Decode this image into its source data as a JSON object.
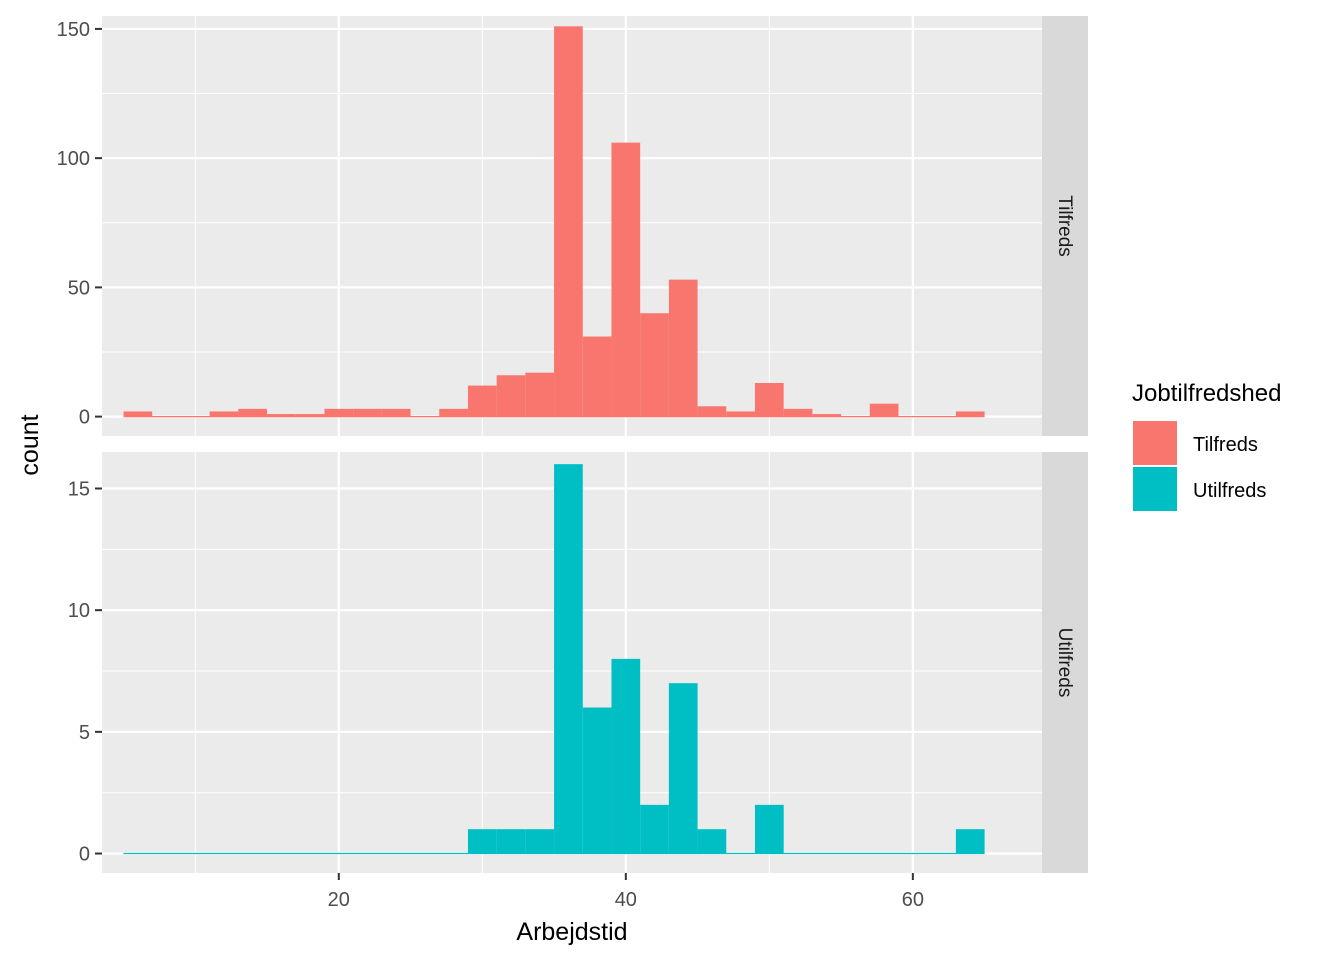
{
  "chart_data": {
    "type": "bar",
    "subtype": "faceted-histogram",
    "xlabel": "Arbejdstid",
    "ylabel": "count",
    "xlim": [
      3.5,
      69
    ],
    "x_ticks": [
      20,
      40,
      60
    ],
    "bin_width": 2,
    "bin_starts": [
      5,
      7,
      9,
      11,
      13,
      15,
      17,
      19,
      21,
      23,
      25,
      27,
      29,
      31,
      33,
      35,
      37,
      39,
      41,
      43,
      45,
      47,
      49,
      51,
      53,
      55,
      57,
      59,
      61,
      63
    ],
    "legend": {
      "title": "Jobtilfredshed",
      "position": "right",
      "entries": [
        {
          "label": "Tilfreds",
          "color": "#F8766D"
        },
        {
          "label": "Utilfreds",
          "color": "#00BFC4"
        }
      ]
    },
    "facets": [
      {
        "strip": "Tilfreds",
        "color": "#F8766D",
        "ylim": [
          -7.5,
          155
        ],
        "y_ticks": [
          0,
          50,
          100,
          150
        ],
        "values": [
          2,
          0,
          0,
          2,
          3,
          1,
          1,
          3,
          3,
          3,
          0,
          3,
          12,
          16,
          17,
          151,
          31,
          106,
          40,
          53,
          4,
          2,
          13,
          3,
          1,
          0,
          5,
          0,
          0,
          2
        ]
      },
      {
        "strip": "Utilfreds",
        "color": "#00BFC4",
        "ylim": [
          -0.8,
          16.5
        ],
        "y_ticks": [
          0,
          5,
          10,
          15
        ],
        "values": [
          0,
          0,
          0,
          0,
          0,
          0,
          0,
          0,
          0,
          0,
          0,
          0,
          1,
          1,
          1,
          16,
          6,
          8,
          2,
          7,
          1,
          0,
          2,
          0,
          0,
          0,
          0,
          0,
          0,
          1
        ]
      }
    ]
  }
}
